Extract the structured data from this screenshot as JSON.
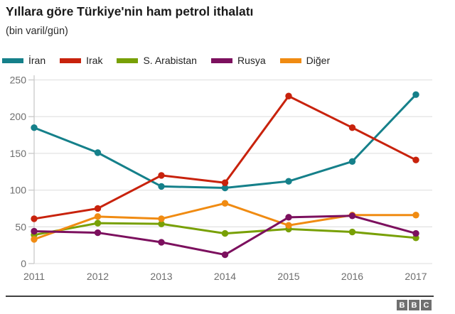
{
  "header": {
    "title": "Yıllara göre Türkiye'nin ham petrol ithalatı",
    "subtitle": "(bin varil/gün)"
  },
  "chart_data": {
    "type": "line",
    "title": "Yıllara göre Türkiye'nin ham petrol ithalatı",
    "subtitle": "(bin varil/gün)",
    "x": [
      "2011",
      "2012",
      "2013",
      "2014",
      "2015",
      "2016",
      "2017"
    ],
    "series": [
      {
        "name": "İran",
        "color": "#15808A",
        "values": [
          185,
          151,
          105,
          103,
          112,
          139,
          230
        ]
      },
      {
        "name": "Irak",
        "color": "#C8220C",
        "values": [
          61,
          75,
          120,
          110,
          228,
          185,
          141
        ]
      },
      {
        "name": "S. Arabistan",
        "color": "#78A005",
        "values": [
          39,
          55,
          54,
          41,
          47,
          43,
          35
        ]
      },
      {
        "name": "Rusya",
        "color": "#7C105E",
        "values": [
          44,
          42,
          29,
          12,
          63,
          65,
          41
        ]
      },
      {
        "name": "Diğer",
        "color": "#F08B12",
        "values": [
          33,
          64,
          61,
          82,
          52,
          66,
          66
        ]
      }
    ],
    "ylim": [
      0,
      250
    ],
    "yticks": [
      0,
      50,
      100,
      150,
      200,
      250
    ],
    "grid": "horizontal",
    "legend_position": "top",
    "colors": {
      "gridline": "#e4e4e4",
      "axis": "#c9c9c9",
      "tick_label": "#6e6e6e"
    }
  },
  "footer": {
    "logo_letters": [
      "B",
      "B",
      "C"
    ]
  }
}
